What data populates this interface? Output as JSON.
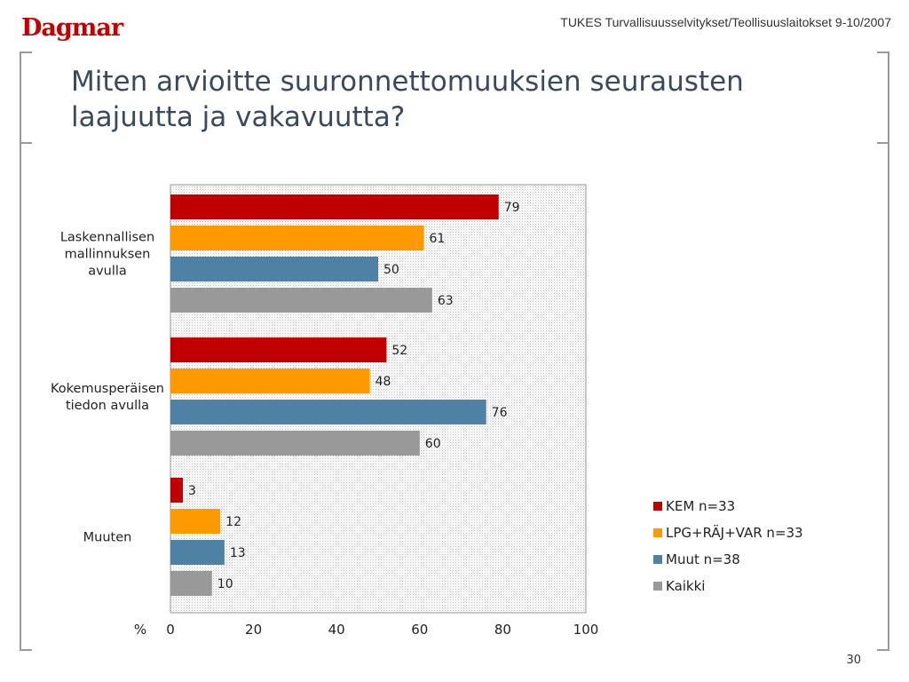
{
  "header": {
    "logo": "Dagmar",
    "source": "TUKES Turvallisuusselvitykset/Teollisuuslaitokset 9-10/2007"
  },
  "title": "Miten arvioitte suuronnettomuuksien seurausten laajuutta ja vakavuutta?",
  "footer": {
    "page_number": "30"
  },
  "colors": {
    "KEM": "#c00000",
    "LPG": "#ff9900",
    "Muut": "#4f81a4",
    "Kaikki": "#999999",
    "plot_bg": "#f2f2f2"
  },
  "chart_data": {
    "type": "bar",
    "orientation": "horizontal",
    "categories": [
      "Laskennallisen mallinnuksen avulla",
      "Kokemusperäisen tiedon avulla",
      "Muuten"
    ],
    "series": [
      {
        "name": "KEM n=33",
        "values": [
          79,
          52,
          3
        ]
      },
      {
        "name": "LPG+RÄJ+VAR n=33",
        "values": [
          61,
          48,
          12
        ]
      },
      {
        "name": "Muut n=38",
        "values": [
          50,
          76,
          13
        ]
      },
      {
        "name": "Kaikki",
        "values": [
          63,
          60,
          10
        ]
      }
    ],
    "xlabel": "%",
    "xlim": [
      0,
      100
    ],
    "xticks": [
      "0",
      "20",
      "40",
      "60",
      "80",
      "100"
    ],
    "legend_position": "right",
    "data_labels": true
  }
}
